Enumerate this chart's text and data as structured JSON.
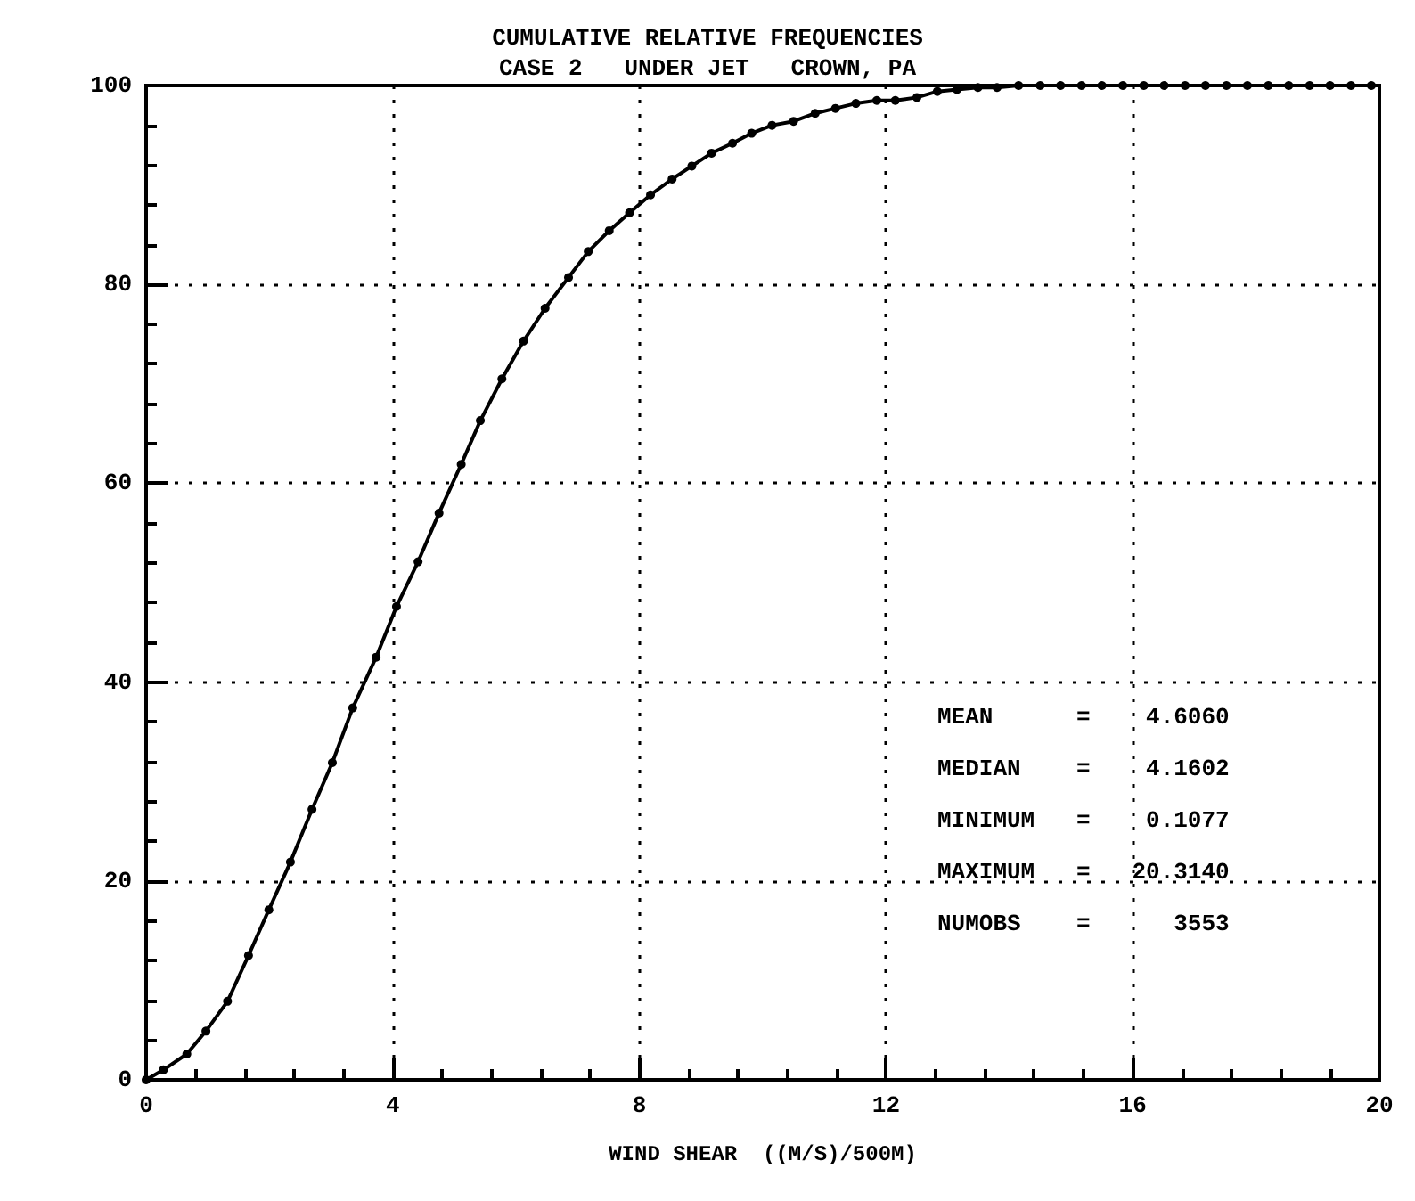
{
  "chart_data": {
    "type": "line",
    "title": "CUMULATIVE RELATIVE FREQUENCIES",
    "subtitle": "CASE 2   UNDER JET   CROWN, PA",
    "xlabel": "WIND SHEAR  ((M/S)/500M)",
    "x": [
      0,
      0.28,
      0.66,
      0.97,
      1.32,
      1.66,
      1.99,
      2.34,
      2.69,
      3.02,
      3.35,
      3.73,
      4.06,
      4.41,
      4.75,
      5.11,
      5.42,
      5.77,
      6.12,
      6.47,
      6.85,
      7.17,
      7.51,
      7.84,
      8.18,
      8.53,
      8.85,
      9.17,
      9.51,
      9.82,
      10.15,
      10.5,
      10.85,
      11.18,
      11.51,
      11.85,
      12.15,
      12.5,
      12.83,
      13.15,
      13.49,
      13.8,
      14.15,
      14.5,
      14.83,
      15.17,
      15.5,
      15.84,
      16.18,
      16.51,
      16.85,
      17.18,
      17.52,
      17.86,
      18.2,
      18.53,
      18.87,
      19.2,
      19.54,
      19.87
    ],
    "series": [
      {
        "color": "#000000",
        "values": [
          0,
          1.0,
          2.6,
          4.9,
          7.9,
          12.5,
          17.1,
          21.9,
          27.2,
          31.9,
          37.4,
          42.5,
          47.6,
          52.1,
          57.0,
          61.9,
          66.3,
          70.5,
          74.3,
          77.6,
          80.7,
          83.3,
          85.4,
          87.2,
          89.0,
          90.6,
          91.9,
          93.2,
          94.2,
          95.2,
          96.0,
          96.4,
          97.2,
          97.7,
          98.2,
          98.5,
          98.5,
          98.8,
          99.4,
          99.6,
          99.8,
          99.8,
          100,
          100,
          100,
          100,
          100,
          100,
          100,
          100,
          100,
          100,
          100,
          100,
          100,
          100,
          100,
          100,
          100,
          100
        ]
      }
    ],
    "xlim": [
      0,
      20
    ],
    "xticks": [
      0,
      4,
      8,
      12,
      16,
      20
    ],
    "ylim": [
      0,
      100
    ],
    "yticks": [
      0,
      20,
      40,
      60,
      80,
      100
    ],
    "grid": true,
    "marker": "circle",
    "line_style": "solid",
    "annotations": [
      "MEAN      =    4.6060",
      "MEDIAN    =    4.1602",
      "MINIMUM   =    0.1077",
      "MAXIMUM   =   20.3140",
      "NUMOBS    =      3553"
    ]
  }
}
